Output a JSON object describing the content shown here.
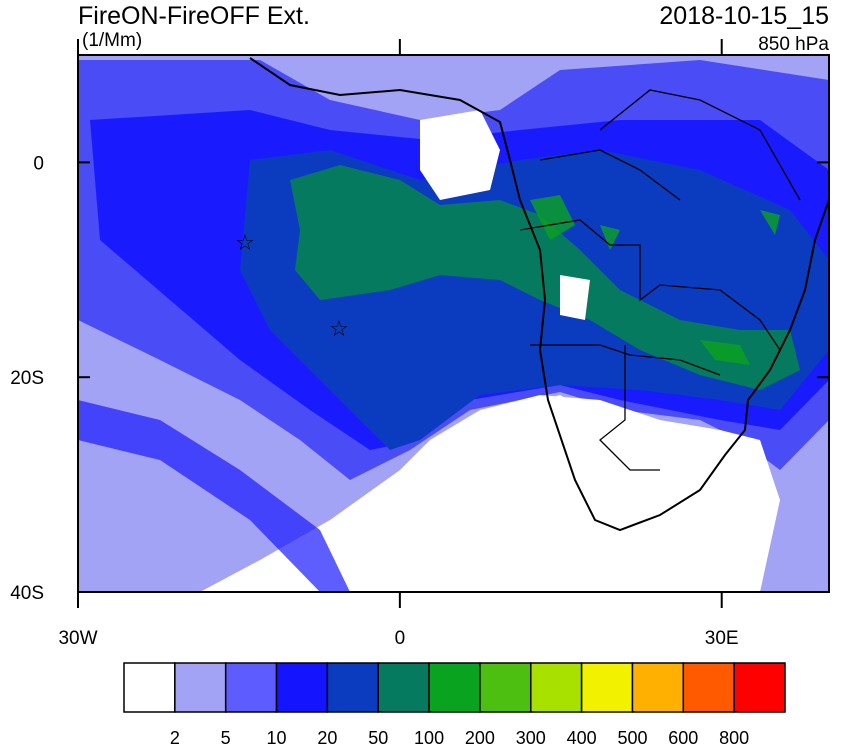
{
  "header": {
    "title": "FireON-FireOFF Ext.",
    "units": "(1/Mm)",
    "time": "2018-10-15_15",
    "level": "850 hPa"
  },
  "map": {
    "lon_lim": [
      -30,
      40
    ],
    "lat_lim": [
      -40,
      10
    ],
    "lat_ticks": [
      {
        "value": 0,
        "label": "0"
      },
      {
        "value": -20,
        "label": "20S"
      },
      {
        "value": -40,
        "label": "40S"
      }
    ],
    "lon_ticks": [
      {
        "value": -30,
        "label": "30W"
      },
      {
        "value": 0,
        "label": "0"
      },
      {
        "value": 30,
        "label": "30E"
      }
    ]
  },
  "colorbar": {
    "levels": [
      2,
      5,
      10,
      20,
      50,
      100,
      200,
      300,
      400,
      500,
      600,
      800
    ],
    "colors": [
      "#ffffff",
      "#a3a3f5",
      "#5c5cff",
      "#1414ff",
      "#0b3cc0",
      "#067a5e",
      "#0aa31f",
      "#4cbf10",
      "#a8e000",
      "#f2f200",
      "#ffb000",
      "#ff5a00",
      "#ff0000"
    ]
  }
}
